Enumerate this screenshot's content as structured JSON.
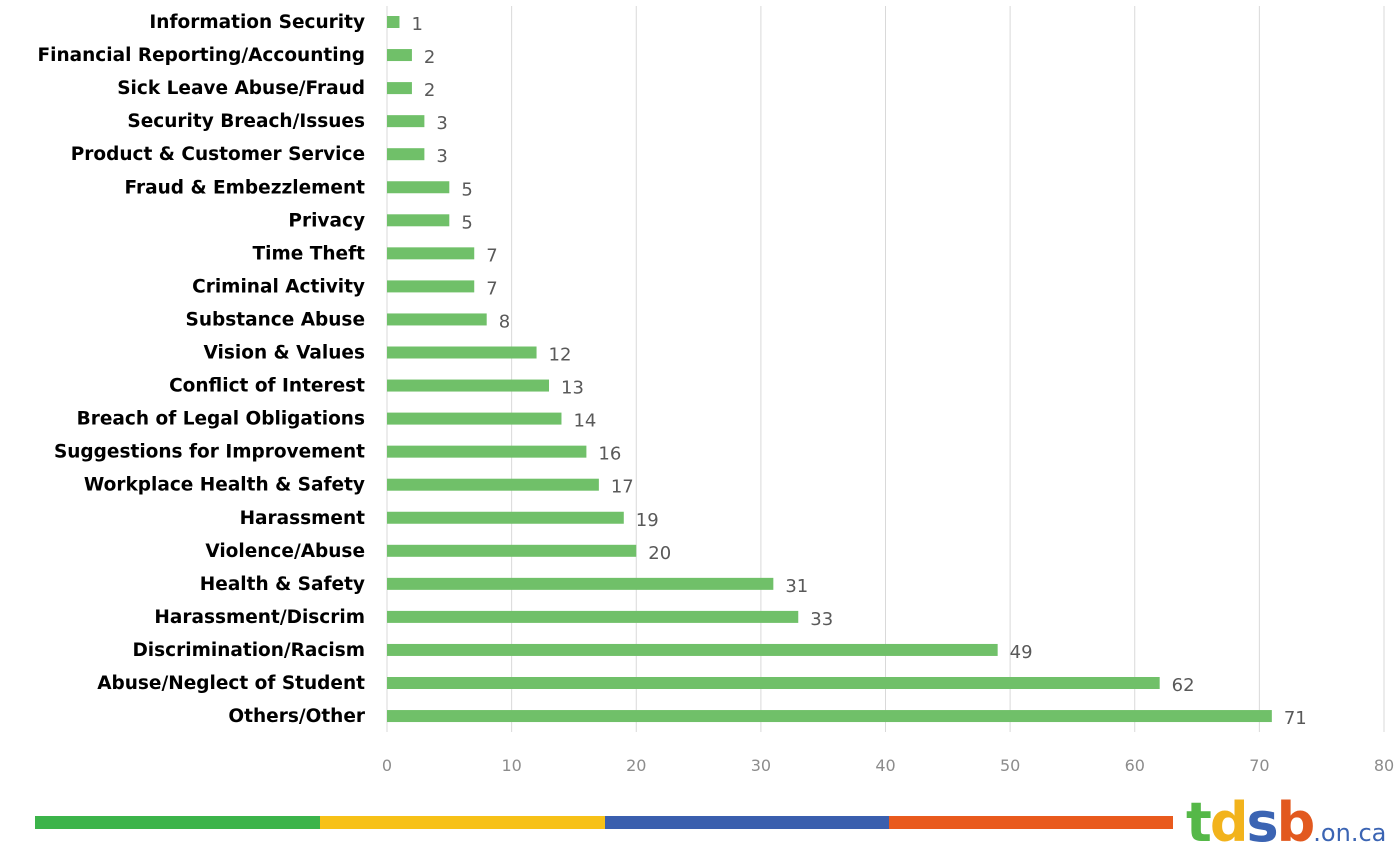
{
  "chart_data": {
    "type": "bar",
    "orientation": "horizontal",
    "categories": [
      "Information Security",
      "Financial Reporting/Accounting",
      "Sick Leave Abuse/Fraud",
      "Security Breach/Issues",
      "Product & Customer Service",
      "Fraud & Embezzlement",
      "Privacy",
      "Time Theft",
      "Criminal Activity",
      "Substance Abuse",
      "Vision & Values",
      "Conflict of Interest",
      "Breach of Legal Obligations",
      "Suggestions for Improvement",
      "Workplace Health & Safety",
      "Harassment",
      "Violence/Abuse",
      "Health & Safety",
      "Harassment/Discrim",
      "Discrimination/Racism",
      "Abuse/Neglect of Student",
      "Others/Other"
    ],
    "values": [
      1,
      2,
      2,
      3,
      3,
      5,
      5,
      7,
      7,
      8,
      12,
      13,
      14,
      16,
      17,
      19,
      20,
      31,
      33,
      49,
      62,
      71
    ],
    "x_ticks": [
      "0",
      "10",
      "20",
      "30",
      "40",
      "50",
      "60",
      "70",
      "80"
    ],
    "xlim": [
      0,
      80
    ],
    "grid": true,
    "bar_color": "#70c069"
  },
  "footer": {
    "stripe_colors": [
      "#3cb44a",
      "#f7c118",
      "#3a5fae",
      "#e95a1d"
    ],
    "logo": {
      "letters": [
        {
          "text": "t",
          "color": "#55b848"
        },
        {
          "text": "d",
          "color": "#f2b31c"
        },
        {
          "text": "s",
          "color": "#3b64b3"
        },
        {
          "text": "b",
          "color": "#e2591f"
        }
      ],
      "suffix": ".on.ca"
    }
  }
}
